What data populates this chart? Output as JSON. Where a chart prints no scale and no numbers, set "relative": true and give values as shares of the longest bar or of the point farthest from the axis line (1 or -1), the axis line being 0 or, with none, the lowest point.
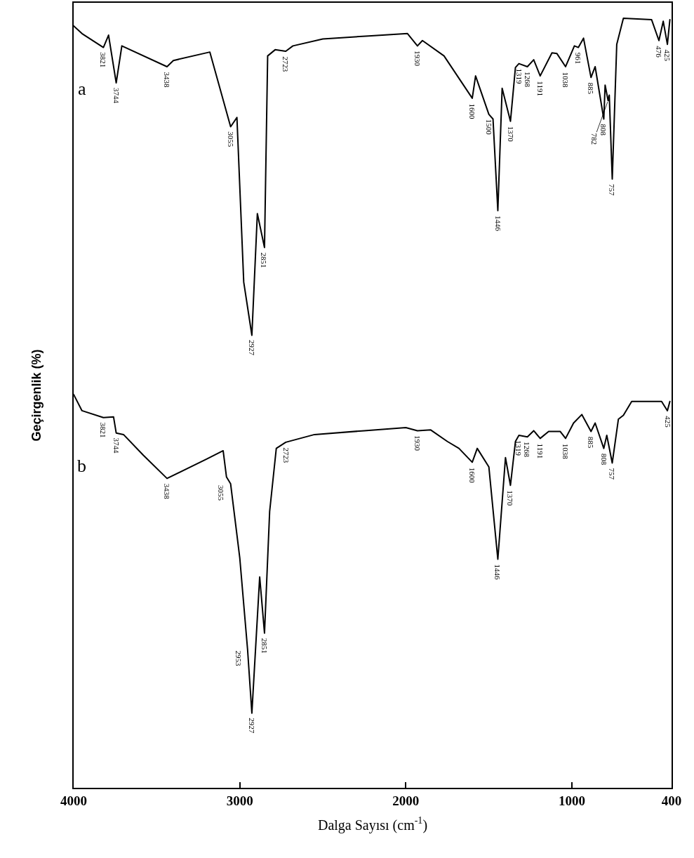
{
  "chart_data": {
    "type": "line",
    "relative": true,
    "xlabel": "Dalga Sayısı (cm$^{-1}$)",
    "ylabel": "Geçirgenlik (%)",
    "xlim": [
      4000,
      400
    ],
    "xticks": [
      4000,
      3000,
      2000,
      1000,
      400
    ],
    "grid": false,
    "legend": false,
    "marker": "none",
    "line_style": "solid",
    "series": [
      {
        "name": "a",
        "color": "#000000",
        "x": [
          4000,
          3950,
          3821,
          3790,
          3744,
          3710,
          3438,
          3400,
          3180,
          3055,
          3017,
          2976,
          2927,
          2894,
          2851,
          2832,
          2787,
          2723,
          2680,
          2500,
          2224,
          1990,
          1930,
          1900,
          1770,
          1600,
          1580,
          1500,
          1475,
          1446,
          1420,
          1370,
          1340,
          1319,
          1268,
          1230,
          1191,
          1120,
          1090,
          1038,
          985,
          961,
          930,
          885,
          860,
          808,
          800,
          782,
          775,
          757,
          730,
          690,
          520,
          476,
          450,
          425,
          410
        ],
        "values": [
          0.99,
          0.98,
          0.962,
          0.978,
          0.916,
          0.964,
          0.937,
          0.945,
          0.956,
          0.859,
          0.871,
          0.657,
          0.588,
          0.746,
          0.702,
          0.951,
          0.959,
          0.957,
          0.964,
          0.973,
          0.977,
          0.98,
          0.964,
          0.971,
          0.951,
          0.896,
          0.925,
          0.875,
          0.869,
          0.75,
          0.909,
          0.866,
          0.936,
          0.941,
          0.937,
          0.946,
          0.925,
          0.955,
          0.954,
          0.937,
          0.964,
          0.962,
          0.974,
          0.923,
          0.937,
          0.869,
          0.913,
          0.893,
          0.9,
          0.791,
          0.966,
          1.0,
          0.998,
          0.971,
          0.996,
          0.966,
          0.998
        ]
      },
      {
        "name": "b",
        "color": "#000000",
        "x": [
          4000,
          3950,
          3821,
          3760,
          3744,
          3700,
          3580,
          3438,
          3200,
          3100,
          3080,
          3055,
          3000,
          2953,
          2927,
          2880,
          2851,
          2820,
          2780,
          2723,
          2550,
          2250,
          2000,
          1930,
          1850,
          1750,
          1680,
          1600,
          1570,
          1500,
          1446,
          1400,
          1370,
          1340,
          1319,
          1268,
          1230,
          1191,
          1140,
          1070,
          1038,
          990,
          940,
          885,
          860,
          808,
          790,
          757,
          720,
          690,
          640,
          460,
          425,
          410
        ],
        "values": [
          0.511,
          0.49,
          0.481,
          0.482,
          0.461,
          0.459,
          0.432,
          0.402,
          0.427,
          0.438,
          0.404,
          0.395,
          0.299,
          0.18,
          0.097,
          0.274,
          0.201,
          0.359,
          0.441,
          0.449,
          0.459,
          0.464,
          0.468,
          0.464,
          0.465,
          0.45,
          0.441,
          0.423,
          0.441,
          0.417,
          0.297,
          0.429,
          0.393,
          0.45,
          0.458,
          0.456,
          0.464,
          0.454,
          0.463,
          0.463,
          0.454,
          0.474,
          0.485,
          0.463,
          0.474,
          0.441,
          0.458,
          0.422,
          0.479,
          0.484,
          0.502,
          0.502,
          0.49,
          0.502
        ]
      }
    ],
    "annotations": [
      {
        "text": "3821",
        "x": 3821,
        "y": 0.962
      },
      {
        "text": "3744",
        "x": 3744,
        "y": 0.916
      },
      {
        "text": "3438",
        "x": 3438,
        "y": 0.937
      },
      {
        "text": "3055",
        "x": 3055,
        "y": 0.859
      },
      {
        "text": "2927",
        "x": 2927,
        "y": 0.588
      },
      {
        "text": "2851",
        "x": 2851,
        "y": 0.702
      },
      {
        "text": "2723",
        "x": 2723,
        "y": 0.957
      },
      {
        "text": "1930",
        "x": 1930,
        "y": 0.964
      },
      {
        "text": "1600",
        "x": 1600,
        "y": 0.896
      },
      {
        "text": "1500",
        "x": 1500,
        "y": 0.875
      },
      {
        "text": "1446",
        "x": 1446,
        "y": 0.75
      },
      {
        "text": "1370",
        "x": 1370,
        "y": 0.866
      },
      {
        "text": "1319",
        "x": 1319,
        "y": 0.941
      },
      {
        "text": "1268",
        "x": 1268,
        "y": 0.937
      },
      {
        "text": "1191",
        "x": 1191,
        "y": 0.925
      },
      {
        "text": "1038",
        "x": 1038,
        "y": 0.937
      },
      {
        "text": "961",
        "x": 961,
        "y": 0.962
      },
      {
        "text": "885",
        "x": 885,
        "y": 0.923
      },
      {
        "text": "808",
        "x": 808,
        "y": 0.869
      },
      {
        "text": "782",
        "x": 782,
        "y": 0.893
      },
      {
        "text": "757",
        "x": 757,
        "y": 0.791
      },
      {
        "text": "476",
        "x": 476,
        "y": 0.971
      },
      {
        "text": "425",
        "x": 425,
        "y": 0.966
      },
      {
        "text": "3821",
        "x": 3821,
        "y": 0.481
      },
      {
        "text": "3744",
        "x": 3744,
        "y": 0.461
      },
      {
        "text": "3438",
        "x": 3438,
        "y": 0.402
      },
      {
        "text": "3055",
        "x": 3055,
        "y": 0.395
      },
      {
        "text": "2953",
        "x": 2953,
        "y": 0.18
      },
      {
        "text": "2927",
        "x": 2927,
        "y": 0.097
      },
      {
        "text": "2851",
        "x": 2851,
        "y": 0.201
      },
      {
        "text": "2723",
        "x": 2723,
        "y": 0.449
      },
      {
        "text": "1930",
        "x": 1930,
        "y": 0.464
      },
      {
        "text": "1600",
        "x": 1600,
        "y": 0.423
      },
      {
        "text": "1446",
        "x": 1446,
        "y": 0.297
      },
      {
        "text": "1370",
        "x": 1370,
        "y": 0.393
      },
      {
        "text": "1319",
        "x": 1319,
        "y": 0.458
      },
      {
        "text": "1268",
        "x": 1268,
        "y": 0.456
      },
      {
        "text": "1191",
        "x": 1191,
        "y": 0.454
      },
      {
        "text": "1038",
        "x": 1038,
        "y": 0.454
      },
      {
        "text": "885",
        "x": 885,
        "y": 0.463
      },
      {
        "text": "808",
        "x": 808,
        "y": 0.441
      },
      {
        "text": "757",
        "x": 757,
        "y": 0.422
      },
      {
        "text": "425",
        "x": 425,
        "y": 0.49
      }
    ]
  }
}
